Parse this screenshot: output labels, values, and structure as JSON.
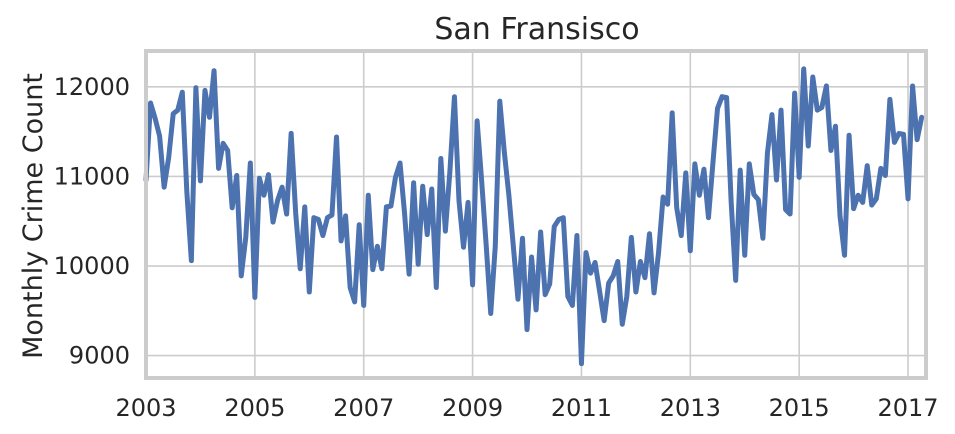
{
  "chart_data": {
    "type": "line",
    "title": "San Fransisco",
    "xlabel": "",
    "ylabel": "Monthly Crime Count",
    "x_ticks": [
      "2003",
      "2005",
      "2007",
      "2009",
      "2011",
      "2013",
      "2015",
      "2017"
    ],
    "y_ticks": [
      9000,
      10000,
      11000,
      12000
    ],
    "xlim": [
      2003.0,
      2017.33
    ],
    "ylim": [
      8750,
      12400
    ],
    "grid": true,
    "series": [
      {
        "color": "#4c72b0",
        "x_start": 2003.0,
        "x_step_months": 1,
        "values": [
          10960,
          11820,
          11650,
          11450,
          10880,
          11210,
          11700,
          11740,
          11940,
          10830,
          10060,
          11990,
          10950,
          11960,
          11660,
          12180,
          11090,
          11370,
          11290,
          10650,
          11010,
          9890,
          10320,
          11150,
          9650,
          10980,
          10790,
          11020,
          10490,
          10730,
          10880,
          10580,
          11480,
          10590,
          9970,
          10660,
          9710,
          10540,
          10520,
          10340,
          10540,
          10570,
          11440,
          10280,
          10560,
          9760,
          9600,
          10460,
          9560,
          10790,
          9960,
          10220,
          9970,
          10660,
          10670,
          10990,
          11150,
          10590,
          9910,
          10930,
          10020,
          10890,
          10350,
          10860,
          9760,
          11200,
          10390,
          11060,
          11890,
          10730,
          10210,
          10710,
          9790,
          11620,
          10950,
          10230,
          9470,
          10220,
          11840,
          11270,
          10790,
          10210,
          9630,
          10310,
          9290,
          10100,
          9510,
          10380,
          9680,
          9800,
          10440,
          10520,
          10540,
          9660,
          9560,
          10340,
          8910,
          10150,
          9920,
          10040,
          9720,
          9390,
          9810,
          9890,
          10050,
          9350,
          9660,
          10320,
          9710,
          10050,
          9870,
          10360,
          9700,
          10150,
          10770,
          10690,
          11710,
          10650,
          10340,
          11040,
          10170,
          11140,
          10790,
          11080,
          10540,
          11160,
          11760,
          11890,
          11880,
          10720,
          9840,
          11070,
          10120,
          11140,
          10800,
          10740,
          10310,
          11260,
          11690,
          10960,
          11740,
          10630,
          10580,
          11930,
          10990,
          12200,
          11340,
          12110,
          11740,
          11770,
          12010,
          11290,
          11560,
          10560,
          10120,
          11460,
          10640,
          10790,
          10710,
          11120,
          10680,
          10750,
          11090,
          11010,
          11860,
          11380,
          11480,
          11470,
          10750,
          12010,
          11410,
          11660
        ]
      }
    ]
  }
}
